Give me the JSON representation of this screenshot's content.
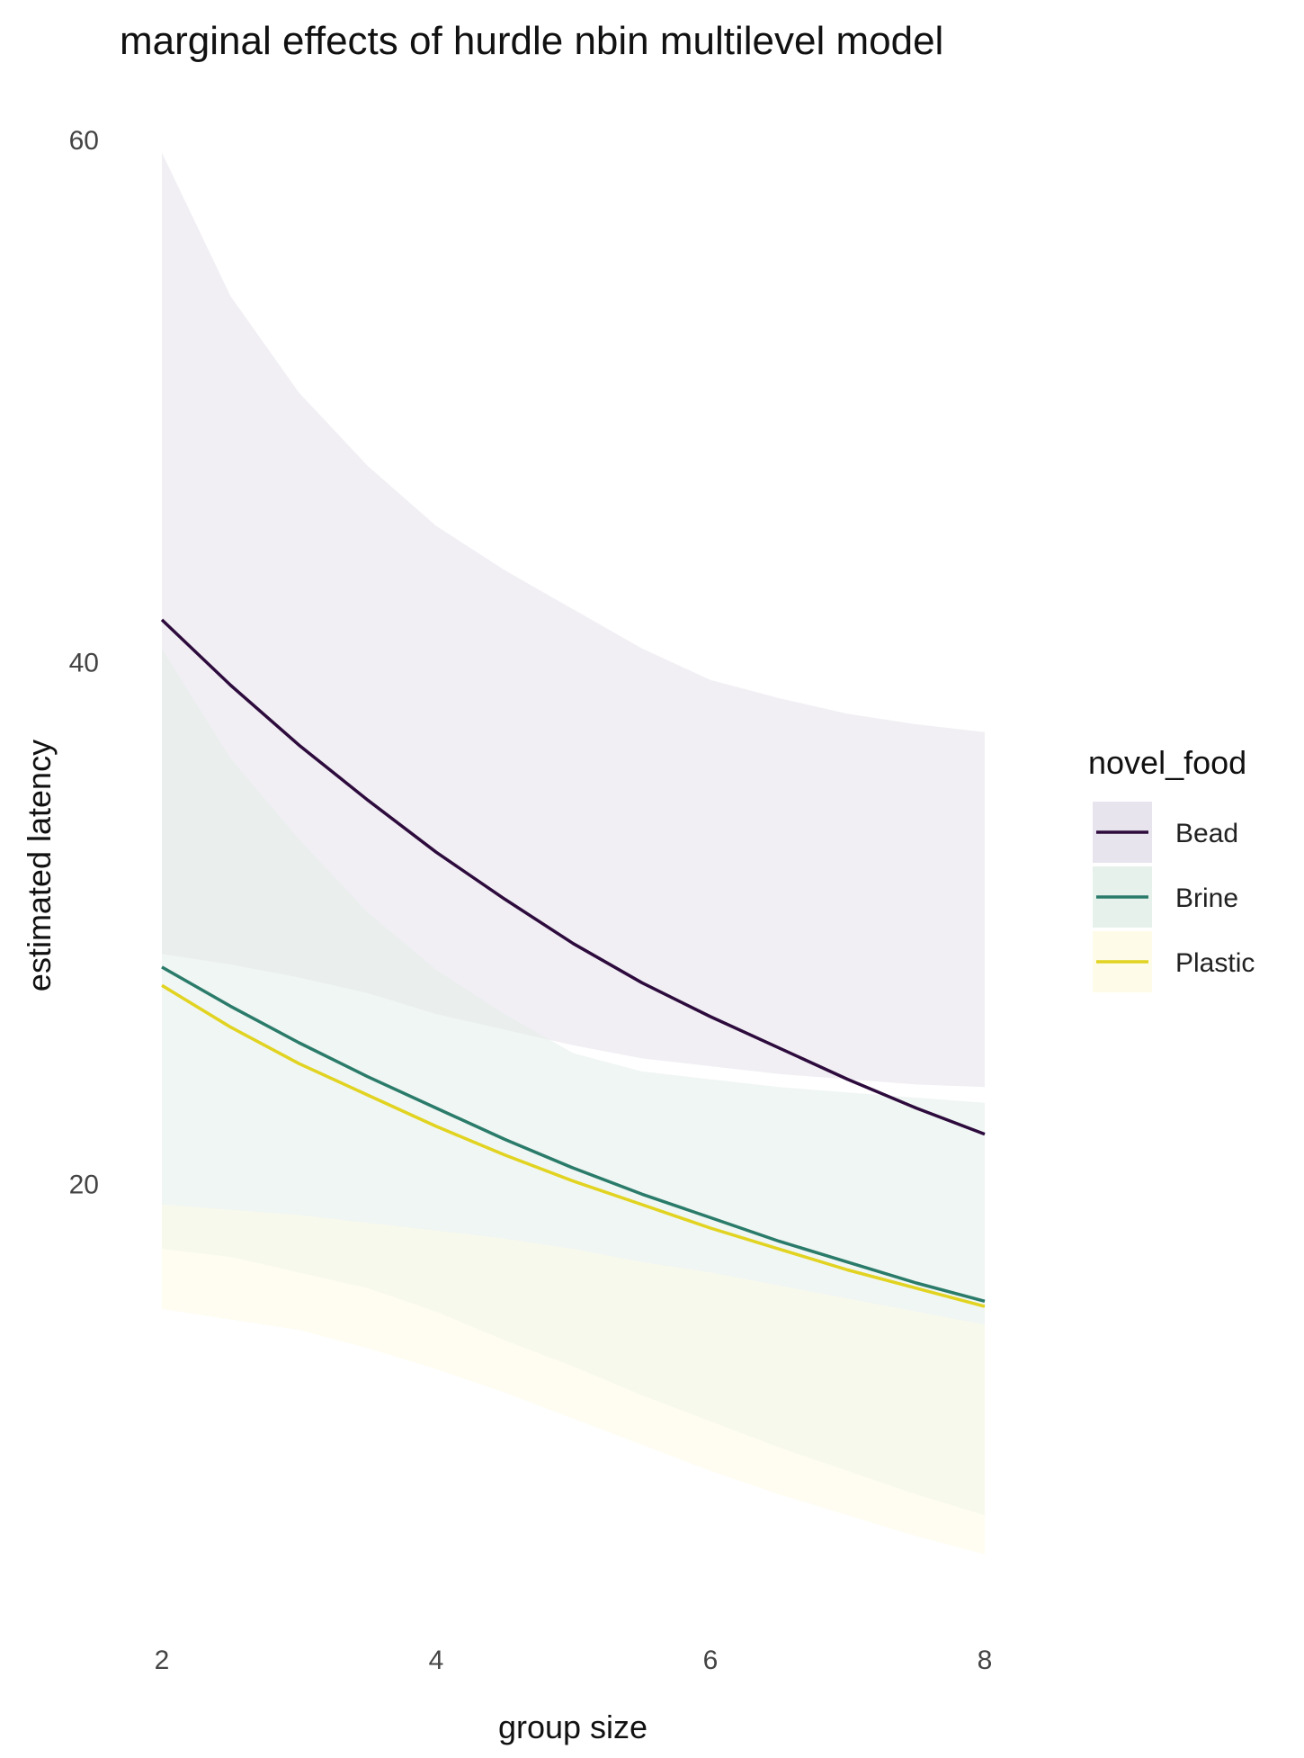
{
  "chart_data": {
    "type": "line",
    "title": "marginal effects of hurdle nbin multilevel model",
    "xlabel": "group size",
    "ylabel": "estimated latency",
    "xlim": [
      2,
      8
    ],
    "ylim": [
      4,
      60
    ],
    "x_ticks": [
      "2",
      "4",
      "6",
      "8"
    ],
    "y_ticks": [
      "20",
      "40",
      "60"
    ],
    "grid": false,
    "legend": {
      "title": "novel_food",
      "position": "right"
    },
    "x": [
      2,
      2.5,
      3,
      3.5,
      4,
      4.5,
      5,
      5.5,
      6,
      6.5,
      7,
      7.5,
      8
    ],
    "series": [
      {
        "name": "Bead",
        "color": "#2d0b3d",
        "band_color": "#e6e1eb",
        "values": [
          41.6,
          39.1,
          36.8,
          34.7,
          32.7,
          30.9,
          29.2,
          27.7,
          26.4,
          25.2,
          24.0,
          22.9,
          21.9
        ],
        "lower": [
          28.8,
          28.4,
          27.9,
          27.3,
          26.5,
          25.9,
          25.3,
          24.8,
          24.5,
          24.2,
          24.0,
          23.8,
          23.7
        ],
        "upper": [
          59.5,
          54.0,
          50.3,
          47.5,
          45.2,
          43.5,
          42.0,
          40.5,
          39.3,
          38.6,
          38.0,
          37.6,
          37.3
        ]
      },
      {
        "name": "Brine",
        "color": "#2a7b6a",
        "band_color": "#e4efea",
        "values": [
          28.3,
          26.8,
          25.4,
          24.1,
          22.9,
          21.7,
          20.6,
          19.6,
          18.7,
          17.8,
          17.0,
          16.2,
          15.5
        ],
        "lower": [
          17.5,
          17.2,
          16.6,
          16.0,
          15.1,
          14.0,
          13.0,
          11.9,
          10.9,
          9.9,
          9.0,
          8.1,
          7.3
        ],
        "upper": [
          40.5,
          36.3,
          33.2,
          30.4,
          28.2,
          26.5,
          25.0,
          24.3,
          24.0,
          23.7,
          23.5,
          23.3,
          23.1
        ]
      },
      {
        "name": "Plastic",
        "color": "#e1d320",
        "band_color": "#fffbe7",
        "values": [
          27.6,
          26.0,
          24.6,
          23.4,
          22.2,
          21.1,
          20.1,
          19.2,
          18.3,
          17.5,
          16.7,
          16.0,
          15.3
        ],
        "lower": [
          15.2,
          14.8,
          14.4,
          13.7,
          12.9,
          12.0,
          11.0,
          10.0,
          9.0,
          8.1,
          7.3,
          6.5,
          5.8
        ],
        "upper": [
          19.2,
          19.0,
          18.8,
          18.5,
          18.2,
          17.9,
          17.5,
          17.0,
          16.6,
          16.1,
          15.6,
          15.1,
          14.6
        ]
      }
    ]
  }
}
